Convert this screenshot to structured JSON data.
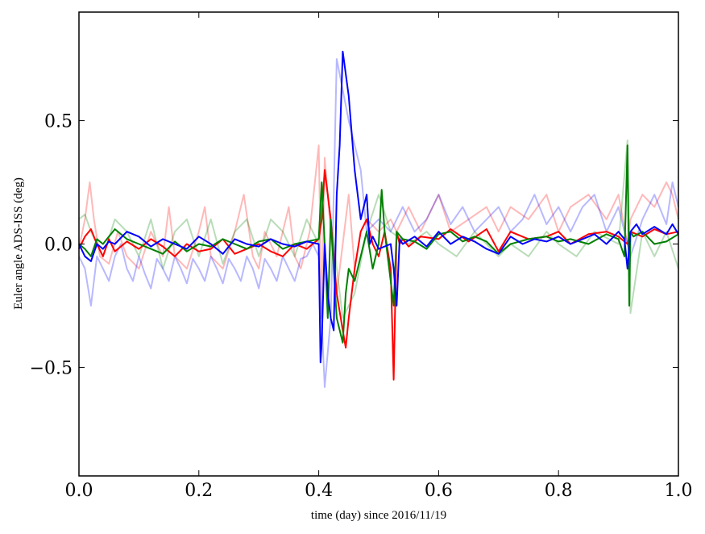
{
  "chart_data": {
    "type": "line",
    "title": "",
    "xlabel": "time (day) since 2016/11/19",
    "ylabel": "Euler angle ADS-ISS (deg)",
    "xlim": [
      0.0,
      1.0
    ],
    "ylim": [
      -0.94,
      0.94
    ],
    "xticks": [
      0.0,
      0.2,
      0.4,
      0.6,
      0.8,
      1.0
    ],
    "xtick_labels": [
      "0.0",
      "0.2",
      "0.4",
      "0.6",
      "0.8",
      "1.0"
    ],
    "yticks": [
      -0.5,
      0.0,
      0.5
    ],
    "ytick_labels": [
      "−0.5",
      "0.0",
      "0.5"
    ],
    "grid": false,
    "legend": "none",
    "series": [
      {
        "color": "#ff0000",
        "alpha": 0.28,
        "x": [
          0.0,
          0.01,
          0.018,
          0.025,
          0.035,
          0.05,
          0.065,
          0.08,
          0.1,
          0.12,
          0.14,
          0.15,
          0.16,
          0.18,
          0.2,
          0.21,
          0.22,
          0.24,
          0.26,
          0.275,
          0.29,
          0.3,
          0.31,
          0.33,
          0.35,
          0.36,
          0.37,
          0.385,
          0.4,
          0.405,
          0.41,
          0.42,
          0.43,
          0.44,
          0.45,
          0.46,
          0.47,
          0.48,
          0.5,
          0.52,
          0.53,
          0.55,
          0.57,
          0.6,
          0.62,
          0.65,
          0.68,
          0.7,
          0.72,
          0.75,
          0.78,
          0.8,
          0.82,
          0.85,
          0.88,
          0.9,
          0.915,
          0.92,
          0.94,
          0.96,
          0.98,
          0.99,
          1.0
        ],
        "y": [
          -0.02,
          0.1,
          0.25,
          0.1,
          -0.05,
          -0.08,
          0.05,
          -0.05,
          -0.1,
          0.05,
          -0.05,
          0.15,
          -0.05,
          -0.1,
          0.05,
          0.15,
          -0.05,
          -0.1,
          0.05,
          0.2,
          -0.05,
          -0.1,
          0.05,
          -0.05,
          0.15,
          -0.05,
          -0.1,
          0.05,
          0.4,
          -0.3,
          0.35,
          0.05,
          -0.2,
          0.0,
          0.2,
          -0.1,
          0.05,
          0.1,
          0.05,
          0.1,
          0.05,
          0.15,
          0.05,
          0.2,
          0.05,
          0.1,
          0.15,
          0.05,
          0.15,
          0.1,
          0.2,
          0.05,
          0.15,
          0.2,
          0.1,
          0.2,
          0.0,
          0.1,
          0.2,
          0.15,
          0.25,
          0.2,
          0.1
        ]
      },
      {
        "color": "#008000",
        "alpha": 0.28,
        "x": [
          0.0,
          0.01,
          0.02,
          0.04,
          0.06,
          0.08,
          0.1,
          0.12,
          0.14,
          0.16,
          0.18,
          0.2,
          0.22,
          0.24,
          0.26,
          0.28,
          0.3,
          0.32,
          0.34,
          0.36,
          0.38,
          0.4,
          0.41,
          0.42,
          0.44,
          0.46,
          0.48,
          0.5,
          0.52,
          0.55,
          0.58,
          0.6,
          0.63,
          0.66,
          0.7,
          0.72,
          0.75,
          0.78,
          0.8,
          0.83,
          0.86,
          0.9,
          0.915,
          0.92,
          0.94,
          0.96,
          0.98,
          1.0
        ],
        "y": [
          0.1,
          0.12,
          0.05,
          -0.05,
          0.1,
          0.05,
          -0.05,
          0.1,
          -0.1,
          0.05,
          0.1,
          -0.05,
          0.1,
          -0.08,
          0.05,
          0.1,
          -0.05,
          0.1,
          0.05,
          -0.05,
          0.1,
          0.0,
          0.3,
          0.1,
          -0.3,
          -0.2,
          0.05,
          0.2,
          0.05,
          0.0,
          0.05,
          0.0,
          -0.05,
          0.05,
          -0.05,
          0.0,
          -0.05,
          0.05,
          0.0,
          -0.05,
          0.05,
          0.0,
          0.42,
          -0.28,
          0.05,
          -0.05,
          0.05,
          -0.1
        ]
      },
      {
        "color": "#0000ff",
        "alpha": 0.28,
        "x": [
          0.0,
          0.01,
          0.02,
          0.03,
          0.04,
          0.05,
          0.06,
          0.07,
          0.08,
          0.09,
          0.1,
          0.11,
          0.12,
          0.13,
          0.14,
          0.15,
          0.16,
          0.17,
          0.18,
          0.19,
          0.2,
          0.21,
          0.22,
          0.23,
          0.24,
          0.25,
          0.26,
          0.27,
          0.28,
          0.29,
          0.3,
          0.31,
          0.32,
          0.33,
          0.34,
          0.35,
          0.36,
          0.37,
          0.38,
          0.39,
          0.4,
          0.41,
          0.42,
          0.425,
          0.43,
          0.45,
          0.47,
          0.48,
          0.5,
          0.52,
          0.54,
          0.56,
          0.58,
          0.6,
          0.62,
          0.64,
          0.66,
          0.68,
          0.7,
          0.72,
          0.74,
          0.76,
          0.78,
          0.8,
          0.82,
          0.84,
          0.86,
          0.88,
          0.9,
          0.92,
          0.94,
          0.96,
          0.98,
          0.99,
          1.0
        ],
        "y": [
          -0.05,
          -0.1,
          -0.25,
          -0.05,
          -0.1,
          -0.15,
          -0.05,
          0.0,
          -0.1,
          -0.15,
          -0.05,
          -0.12,
          -0.18,
          -0.06,
          -0.1,
          -0.15,
          -0.05,
          -0.1,
          -0.16,
          -0.06,
          -0.1,
          -0.15,
          -0.05,
          -0.1,
          -0.16,
          -0.06,
          -0.1,
          -0.15,
          -0.05,
          -0.1,
          -0.18,
          -0.06,
          -0.1,
          -0.15,
          -0.05,
          -0.1,
          -0.15,
          -0.06,
          -0.05,
          0.0,
          -0.05,
          -0.58,
          -0.3,
          0.2,
          0.75,
          0.5,
          0.3,
          0.05,
          0.1,
          0.05,
          0.15,
          0.05,
          0.1,
          0.2,
          0.08,
          0.15,
          0.05,
          0.1,
          0.15,
          0.05,
          0.1,
          0.2,
          0.08,
          0.15,
          0.05,
          0.15,
          0.2,
          0.05,
          0.15,
          -0.05,
          0.1,
          0.2,
          0.08,
          0.25,
          0.15
        ]
      },
      {
        "color": "#ff0000",
        "alpha": 1.0,
        "x": [
          0.0,
          0.01,
          0.02,
          0.03,
          0.04,
          0.05,
          0.06,
          0.08,
          0.1,
          0.12,
          0.14,
          0.16,
          0.18,
          0.2,
          0.22,
          0.24,
          0.26,
          0.28,
          0.3,
          0.32,
          0.34,
          0.36,
          0.38,
          0.4,
          0.405,
          0.41,
          0.415,
          0.42,
          0.43,
          0.44,
          0.445,
          0.45,
          0.46,
          0.47,
          0.48,
          0.49,
          0.5,
          0.51,
          0.52,
          0.525,
          0.53,
          0.535,
          0.54,
          0.55,
          0.57,
          0.6,
          0.62,
          0.65,
          0.68,
          0.7,
          0.72,
          0.75,
          0.78,
          0.8,
          0.82,
          0.85,
          0.88,
          0.9,
          0.915,
          0.92,
          0.94,
          0.96,
          0.98,
          1.0
        ],
        "y": [
          -0.02,
          0.03,
          0.06,
          0.0,
          -0.05,
          0.02,
          -0.03,
          0.01,
          -0.02,
          0.02,
          -0.01,
          -0.05,
          0.0,
          -0.03,
          -0.02,
          0.02,
          -0.04,
          -0.02,
          0.0,
          -0.03,
          -0.05,
          0.0,
          -0.02,
          0.02,
          0.1,
          0.3,
          0.2,
          0.1,
          -0.2,
          -0.35,
          -0.42,
          -0.3,
          -0.1,
          0.05,
          0.1,
          0.0,
          -0.05,
          0.05,
          -0.1,
          -0.55,
          0.05,
          0.0,
          0.02,
          -0.01,
          0.03,
          0.02,
          0.06,
          0.01,
          0.06,
          -0.03,
          0.05,
          0.02,
          0.03,
          0.05,
          0.0,
          0.04,
          0.05,
          0.03,
          0.0,
          0.05,
          0.03,
          0.06,
          0.04,
          0.05
        ]
      },
      {
        "color": "#008000",
        "alpha": 1.0,
        "x": [
          0.0,
          0.01,
          0.02,
          0.03,
          0.04,
          0.05,
          0.06,
          0.08,
          0.1,
          0.12,
          0.14,
          0.16,
          0.18,
          0.2,
          0.22,
          0.24,
          0.26,
          0.28,
          0.3,
          0.32,
          0.34,
          0.36,
          0.38,
          0.4,
          0.405,
          0.41,
          0.415,
          0.42,
          0.425,
          0.43,
          0.44,
          0.445,
          0.45,
          0.46,
          0.47,
          0.48,
          0.49,
          0.5,
          0.505,
          0.51,
          0.52,
          0.525,
          0.53,
          0.54,
          0.56,
          0.58,
          0.6,
          0.62,
          0.64,
          0.66,
          0.68,
          0.7,
          0.72,
          0.75,
          0.78,
          0.8,
          0.82,
          0.85,
          0.88,
          0.9,
          0.91,
          0.915,
          0.918,
          0.92,
          0.925,
          0.94,
          0.96,
          0.98,
          1.0
        ],
        "y": [
          0.0,
          -0.02,
          -0.05,
          0.02,
          0.0,
          0.03,
          0.06,
          0.02,
          0.0,
          -0.02,
          -0.04,
          0.01,
          -0.03,
          0.0,
          -0.01,
          0.02,
          0.0,
          -0.02,
          0.01,
          0.02,
          -0.02,
          0.0,
          0.01,
          0.02,
          0.25,
          0.0,
          -0.3,
          0.1,
          -0.1,
          -0.3,
          -0.4,
          -0.2,
          -0.1,
          -0.15,
          -0.05,
          0.05,
          -0.1,
          0.0,
          0.22,
          0.05,
          -0.15,
          -0.25,
          0.05,
          0.02,
          0.01,
          -0.02,
          0.04,
          0.05,
          0.01,
          0.03,
          0.01,
          -0.04,
          0.0,
          0.02,
          0.03,
          0.01,
          0.02,
          0.0,
          0.04,
          0.02,
          -0.05,
          0.4,
          -0.25,
          0.05,
          0.03,
          0.05,
          0.0,
          0.01,
          0.04
        ]
      },
      {
        "color": "#0000ff",
        "alpha": 1.0,
        "x": [
          0.0,
          0.01,
          0.02,
          0.03,
          0.04,
          0.05,
          0.06,
          0.08,
          0.1,
          0.12,
          0.14,
          0.16,
          0.18,
          0.2,
          0.22,
          0.24,
          0.26,
          0.28,
          0.3,
          0.32,
          0.34,
          0.36,
          0.38,
          0.4,
          0.403,
          0.405,
          0.41,
          0.415,
          0.42,
          0.425,
          0.43,
          0.435,
          0.44,
          0.45,
          0.455,
          0.46,
          0.47,
          0.48,
          0.485,
          0.49,
          0.5,
          0.52,
          0.525,
          0.53,
          0.535,
          0.54,
          0.56,
          0.58,
          0.6,
          0.62,
          0.64,
          0.66,
          0.68,
          0.7,
          0.72,
          0.74,
          0.76,
          0.78,
          0.8,
          0.82,
          0.84,
          0.86,
          0.88,
          0.9,
          0.91,
          0.915,
          0.92,
          0.93,
          0.94,
          0.96,
          0.98,
          0.99,
          1.0
        ],
        "y": [
          0.0,
          -0.05,
          -0.07,
          0.0,
          -0.02,
          0.01,
          0.0,
          0.05,
          0.03,
          -0.01,
          0.02,
          0.0,
          -0.02,
          0.03,
          0.0,
          -0.04,
          0.02,
          0.0,
          -0.01,
          0.02,
          0.0,
          -0.01,
          0.01,
          0.0,
          -0.48,
          -0.4,
          0.0,
          -0.2,
          -0.3,
          -0.35,
          0.2,
          0.4,
          0.78,
          0.6,
          0.45,
          0.3,
          0.1,
          0.2,
          0.0,
          0.03,
          -0.02,
          0.0,
          -0.1,
          -0.25,
          0.02,
          0.0,
          0.03,
          -0.01,
          0.05,
          0.0,
          0.03,
          0.01,
          -0.02,
          -0.04,
          0.03,
          0.0,
          0.02,
          0.01,
          0.03,
          0.0,
          0.02,
          0.04,
          0.0,
          0.05,
          0.02,
          -0.1,
          0.05,
          0.08,
          0.04,
          0.07,
          0.04,
          0.08,
          0.04
        ]
      }
    ]
  }
}
